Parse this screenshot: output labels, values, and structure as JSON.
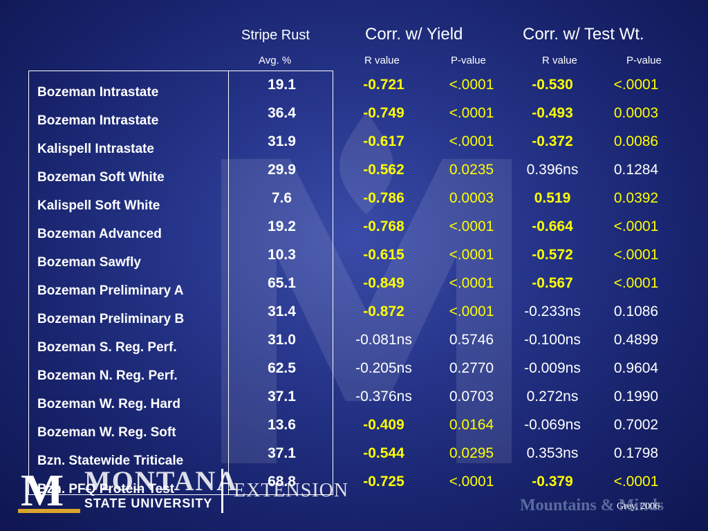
{
  "headers": {
    "stripe_rust": "Stripe Rust",
    "corr_yield": "Corr. w/ Yield",
    "corr_testwt": "Corr. w/ Test Wt.",
    "avg_pct": "Avg. %",
    "r_value_1": "R value",
    "p_value_1": "P-value",
    "r_value_2": "R value",
    "p_value_2": "P-value"
  },
  "rows": [
    {
      "name": "Bozeman Intrastate",
      "rust": "19.1",
      "yr": "-0.721",
      "yp": "<.0001",
      "tr": "-0.530",
      "tp": "<.0001"
    },
    {
      "name": "Bozeman Intrastate",
      "rust": "36.4",
      "yr": "-0.749",
      "yp": "<.0001",
      "tr": "-0.493",
      "tp": "0.0003"
    },
    {
      "name": "Kalispell Intrastate",
      "rust": "31.9",
      "yr": "-0.617",
      "yp": "<.0001",
      "tr": "-0.372",
      "tp": "0.0086"
    },
    {
      "name": "Bozeman Soft White",
      "rust": "29.9",
      "yr": "-0.562",
      "yp": "0.0235",
      "tr": "0.396ns",
      "tp": "0.1284"
    },
    {
      "name": "Kalispell Soft White",
      "rust": "7.6",
      "yr": "-0.786",
      "yp": "0.0003",
      "tr": "0.519",
      "tp": "0.0392"
    },
    {
      "name": "Bozeman Advanced",
      "rust": "19.2",
      "yr": "-0.768",
      "yp": "<.0001",
      "tr": "-0.664",
      "tp": "<.0001"
    },
    {
      "name": "Bozeman Sawfly",
      "rust": "10.3",
      "yr": "-0.615",
      "yp": "<.0001",
      "tr": "-0.572",
      "tp": "<.0001"
    },
    {
      "name": "Bozeman Preliminary A",
      "rust": "65.1",
      "yr": "-0.849",
      "yp": "<.0001",
      "tr": "-0.567",
      "tp": "<.0001"
    },
    {
      "name": "Bozeman Preliminary B",
      "rust": "31.4",
      "yr": "-0.872",
      "yp": "<.0001",
      "tr": "-0.233ns",
      "tp": "0.1086"
    },
    {
      "name": "Bozeman S. Reg. Perf.",
      "rust": "31.0",
      "yr": "-0.081ns",
      "yp": "0.5746",
      "tr": "-0.100ns",
      "tp": "0.4899"
    },
    {
      "name": "Bozeman N. Reg. Perf.",
      "rust": "62.5",
      "yr": "-0.205ns",
      "yp": "0.2770",
      "tr": "-0.009ns",
      "tp": "0.9604"
    },
    {
      "name": "Bozeman W. Reg. Hard",
      "rust": "37.1",
      "yr": "-0.376ns",
      "yp": "0.0703",
      "tr": "0.272ns",
      "tp": "0.1990"
    },
    {
      "name": "Bozeman W. Reg. Soft",
      "rust": "13.6",
      "yr": "-0.409",
      "yp": "0.0164",
      "tr": "-0.069ns",
      "tp": "0.7002"
    },
    {
      "name": "Bzn. Statewide Triticale",
      "rust": "37.1",
      "yr": "-0.544",
      "yp": "0.0295",
      "tr": "0.353ns",
      "tp": "0.1798"
    },
    {
      "name": "Bzn. PFQ Protein Test",
      "rust": "68.8",
      "yr": "-0.725",
      "yp": "<.0001",
      "tr": "-0.379",
      "tp": "<.0001"
    }
  ],
  "footer": {
    "logo_m": "M",
    "logo_montana": "MONTANA",
    "logo_university": "STATE UNIVERSITY",
    "logo_extension": "EXTENSION",
    "tagline": "Mountains & Minds",
    "credit": "Grey, 2006"
  },
  "colors": {
    "significant": "#ffff00",
    "background": "#26358a",
    "text": "#ffffff"
  }
}
